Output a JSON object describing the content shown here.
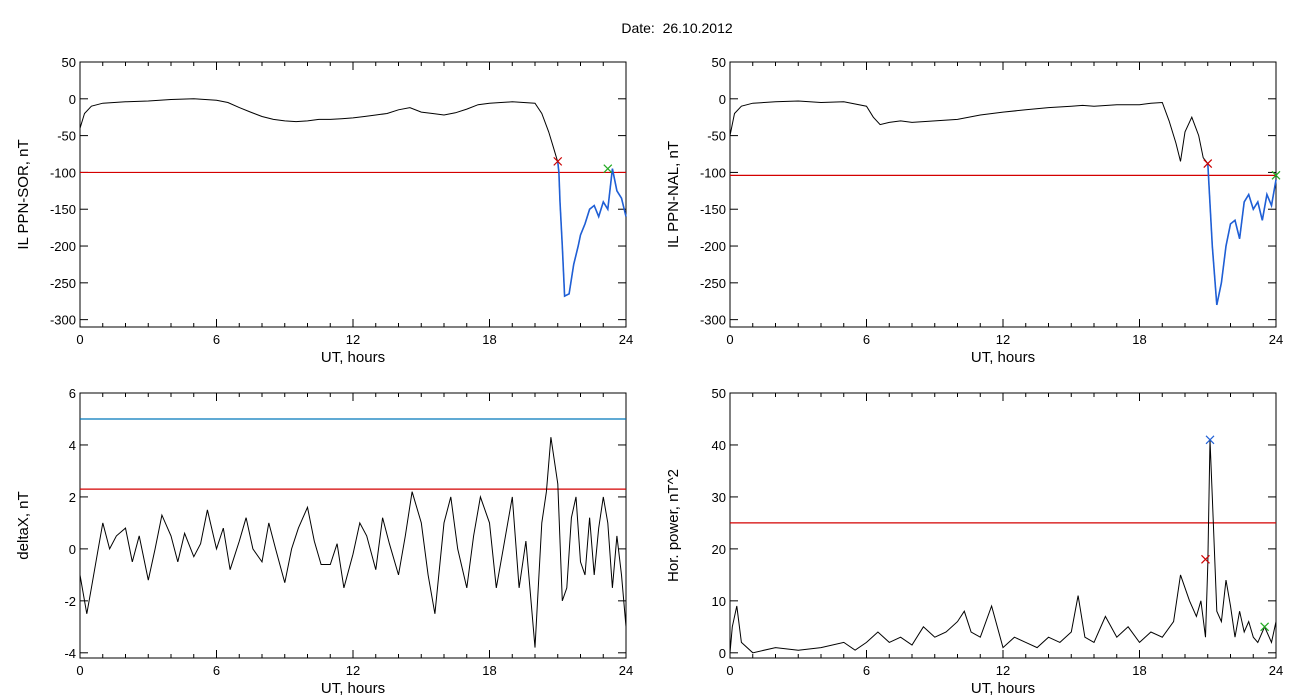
{
  "title": "Date:  26.10.2012",
  "colors": {
    "threshold": "#d40000",
    "upper_threshold": "#0077bb",
    "segment": "#1f5fd6",
    "trace": "#000000",
    "start_marker": "#cc0000",
    "end_marker": "#22aa22",
    "peak_marker": "#1f5fd6"
  },
  "chart_data": [
    {
      "type": "line",
      "xlabel": "UT, hours",
      "ylabel": "IL PPN-SOR, nT",
      "xlim": [
        0,
        24
      ],
      "ylim": [
        -310,
        50
      ],
      "xticks": [
        "0",
        "6",
        "12",
        "18",
        "24"
      ],
      "yticks": [
        "50",
        "0",
        "-50",
        "-100",
        "-150",
        "-200",
        "-250",
        "-300"
      ],
      "threshold": -100,
      "series": [
        {
          "x": [
            0,
            0.2,
            0.5,
            1,
            1.5,
            2,
            3,
            4,
            5,
            5.5,
            6,
            6.5,
            7,
            7.5,
            8,
            8.5,
            9,
            9.5,
            10,
            10.5,
            11,
            11.5,
            12,
            12.5,
            13,
            13.5,
            14,
            14.5,
            15,
            15.5,
            16,
            16.5,
            17,
            17.5,
            18,
            18.5,
            19,
            19.5,
            20,
            20.3,
            20.6,
            20.8,
            21,
            21.05,
            21.1,
            21.2,
            21.3,
            21.5,
            21.7,
            21.9,
            22,
            22.2,
            22.4,
            22.6,
            22.8,
            23,
            23.2,
            23.4,
            23.6,
            23.8,
            24
          ],
          "y": [
            -40,
            -20,
            -10,
            -6,
            -5,
            -4,
            -3,
            -1,
            0,
            -1,
            -2,
            -5,
            -12,
            -18,
            -24,
            -28,
            -30,
            -31,
            -30,
            -28,
            -28,
            -27,
            -26,
            -24,
            -22,
            -20,
            -15,
            -12,
            -18,
            -20,
            -22,
            -19,
            -14,
            -8,
            -6,
            -5,
            -4,
            -5,
            -6,
            -20,
            -45,
            -65,
            -86,
            -100,
            -140,
            -200,
            -268,
            -265,
            -225,
            -200,
            -185,
            -170,
            -150,
            -145,
            -160,
            -140,
            -150,
            -95,
            -125,
            -135,
            -160
          ],
          "segment_from": 21
        }
      ],
      "markers": [
        {
          "x": 21,
          "y": -85,
          "role": "start"
        },
        {
          "x": 23.2,
          "y": -95,
          "role": "end"
        }
      ]
    },
    {
      "type": "line",
      "xlabel": "UT, hours",
      "ylabel": "IL PPN-NAL, nT",
      "xlim": [
        0,
        24
      ],
      "ylim": [
        -310,
        50
      ],
      "xticks": [
        "0",
        "6",
        "12",
        "18",
        "24"
      ],
      "yticks": [
        "50",
        "0",
        "-50",
        "-100",
        "-150",
        "-200",
        "-250",
        "-300"
      ],
      "threshold": -104,
      "series": [
        {
          "x": [
            0,
            0.2,
            0.5,
            1,
            2,
            3,
            4,
            5,
            6,
            6.3,
            6.6,
            7,
            7.5,
            8,
            9,
            10,
            11,
            12,
            13,
            14,
            15,
            15.5,
            16,
            17,
            18,
            18.5,
            19,
            19.3,
            19.6,
            19.8,
            20,
            20.3,
            20.6,
            20.8,
            21,
            21.2,
            21.4,
            21.6,
            21.8,
            22,
            22.2,
            22.4,
            22.6,
            22.8,
            23,
            23.2,
            23.4,
            23.6,
            23.8,
            24
          ],
          "y": [
            -50,
            -20,
            -10,
            -6,
            -4,
            -3,
            -5,
            -4,
            -10,
            -25,
            -35,
            -32,
            -30,
            -32,
            -30,
            -28,
            -22,
            -18,
            -15,
            -12,
            -10,
            -9,
            -10,
            -8,
            -8,
            -6,
            -5,
            -30,
            -60,
            -85,
            -45,
            -25,
            -50,
            -80,
            -88,
            -200,
            -280,
            -250,
            -200,
            -170,
            -165,
            -190,
            -140,
            -130,
            -150,
            -140,
            -165,
            -130,
            -145,
            -110
          ],
          "segment_from": 21
        }
      ],
      "markers": [
        {
          "x": 21,
          "y": -88,
          "role": "start"
        },
        {
          "x": 24,
          "y": -104,
          "role": "end"
        }
      ]
    },
    {
      "type": "line",
      "xlabel": "UT, hours",
      "ylabel": "deltaX, nT",
      "xlim": [
        0,
        24
      ],
      "ylim": [
        -4.2,
        6
      ],
      "xticks": [
        "0",
        "6",
        "12",
        "18",
        "24"
      ],
      "yticks": [
        "6",
        "4",
        "2",
        "0",
        "-2",
        "-4"
      ],
      "threshold": 2.3,
      "upper_threshold": 5,
      "series": [
        {
          "x": [
            0,
            0.3,
            0.5,
            0.8,
            1,
            1.3,
            1.6,
            2,
            2.3,
            2.6,
            3,
            3.3,
            3.6,
            4,
            4.3,
            4.6,
            5,
            5.3,
            5.6,
            6,
            6.3,
            6.6,
            7,
            7.3,
            7.6,
            8,
            8.3,
            8.6,
            9,
            9.3,
            9.6,
            10,
            10.3,
            10.6,
            11,
            11.3,
            11.6,
            12,
            12.3,
            12.6,
            13,
            13.3,
            13.6,
            14,
            14.3,
            14.6,
            15,
            15.3,
            15.6,
            16,
            16.3,
            16.6,
            17,
            17.3,
            17.6,
            18,
            18.3,
            18.6,
            19,
            19.3,
            19.6,
            20,
            20.3,
            20.5,
            20.7,
            21,
            21.2,
            21.4,
            21.6,
            21.8,
            22,
            22.2,
            22.4,
            22.6,
            22.8,
            23,
            23.2,
            23.4,
            23.6,
            23.8,
            24
          ],
          "y": [
            -1,
            -2.5,
            -1.5,
            0,
            1,
            0,
            0.5,
            0.8,
            -0.5,
            0.5,
            -1.2,
            0,
            1.3,
            0.5,
            -0.5,
            0.6,
            -0.3,
            0.2,
            1.5,
            0,
            0.8,
            -0.8,
            0.3,
            1.2,
            0,
            -0.5,
            1,
            0,
            -1.3,
            0,
            0.8,
            1.6,
            0.3,
            -0.6,
            -0.6,
            0.2,
            -1.5,
            -0.2,
            1,
            0.5,
            -0.8,
            1.2,
            0.2,
            -1,
            0.5,
            2.2,
            1,
            -1,
            -2.5,
            1,
            2,
            0,
            -1.5,
            0.5,
            2,
            1,
            -1.5,
            0,
            2,
            -1.5,
            0.3,
            -3.8,
            1,
            2.2,
            4.3,
            2.5,
            -2,
            -1.5,
            1.2,
            2,
            -0.5,
            -1,
            1.2,
            -1,
            0.8,
            2,
            1,
            -1.5,
            0.5,
            -1,
            -3
          ]
        }
      ]
    },
    {
      "type": "line",
      "xlabel": "UT, hours",
      "ylabel": "Hor. power, nT^2",
      "xlim": [
        0,
        24
      ],
      "ylim": [
        -1,
        50
      ],
      "xticks": [
        "0",
        "6",
        "12",
        "18",
        "24"
      ],
      "yticks": [
        "50",
        "40",
        "30",
        "20",
        "10",
        "0"
      ],
      "threshold": 25,
      "series": [
        {
          "x": [
            0,
            0.1,
            0.3,
            0.5,
            1,
            2,
            3,
            4,
            5,
            5.5,
            6,
            6.5,
            7,
            7.5,
            8,
            8.5,
            9,
            9.5,
            10,
            10.3,
            10.6,
            11,
            11.5,
            12,
            12.5,
            13,
            13.5,
            14,
            14.5,
            15,
            15.3,
            15.6,
            16,
            16.5,
            17,
            17.5,
            18,
            18.5,
            19,
            19.5,
            19.8,
            20.2,
            20.5,
            20.7,
            20.9,
            21,
            21.1,
            21.2,
            21.4,
            21.6,
            21.8,
            22,
            22.2,
            22.4,
            22.6,
            22.8,
            23,
            23.2,
            23.5,
            23.8,
            24
          ],
          "y": [
            0,
            5,
            9,
            2,
            0,
            1,
            0.5,
            1,
            2,
            0.5,
            2,
            4,
            2,
            3,
            1.5,
            5,
            3,
            4,
            6,
            8,
            4,
            3,
            9,
            1,
            3,
            2,
            1,
            3,
            2,
            4,
            11,
            3,
            2,
            7,
            3,
            5,
            2,
            4,
            3,
            6,
            15,
            10,
            7,
            10,
            3,
            17,
            41,
            30,
            8,
            6,
            14,
            9,
            3,
            8,
            4,
            6,
            3,
            2,
            5,
            2,
            6
          ]
        }
      ],
      "markers": [
        {
          "x": 20.9,
          "y": 18,
          "role": "start"
        },
        {
          "x": 21.1,
          "y": 41,
          "role": "peak"
        },
        {
          "x": 23.5,
          "y": 5,
          "role": "end"
        }
      ]
    }
  ]
}
